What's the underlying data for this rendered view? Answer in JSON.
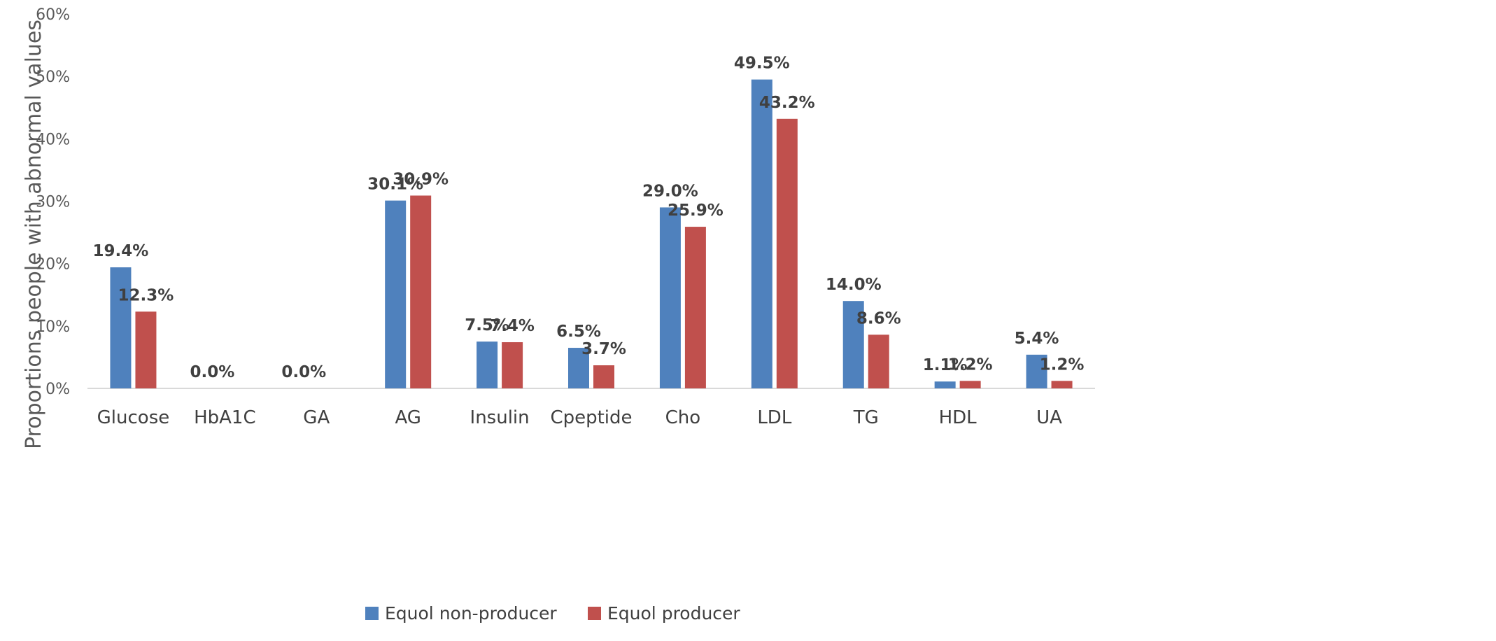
{
  "chart_data": {
    "type": "bar",
    "categories": [
      "Glucose",
      "HbA1C",
      "GA",
      "AG",
      "Insulin",
      "Cpeptide",
      "Cho",
      "LDL",
      "TG",
      "HDL",
      "UA"
    ],
    "series": [
      {
        "name": "Equol non-producer",
        "color": "#4f81bd",
        "values": [
          19.4,
          0.0,
          0.0,
          30.1,
          7.5,
          6.5,
          29.0,
          49.5,
          14.0,
          1.1,
          5.4
        ],
        "labels": [
          "19.4%",
          "0.0%",
          "0.0%",
          "30.1%",
          "7.5%",
          "6.5%",
          "29.0%",
          "49.5%",
          "14.0%",
          "1.1%",
          "5.4%"
        ]
      },
      {
        "name": "Equol producer",
        "color": "#c0504d",
        "values": [
          12.3,
          null,
          null,
          30.9,
          7.4,
          3.7,
          25.9,
          43.2,
          8.6,
          1.2,
          1.2
        ],
        "labels": [
          "12.3%",
          "",
          "",
          "30.9%",
          "7.4%",
          "3.7%",
          "25.9%",
          "43.2%",
          "8.6%",
          "1.2%",
          "1.2%"
        ]
      }
    ],
    "ylabel": "Proportions people with abnormal values",
    "xlabel": "",
    "ylim": [
      0,
      60
    ],
    "yticks": [
      0,
      10,
      20,
      30,
      40,
      50,
      60
    ],
    "ytick_labels": [
      "0%",
      "10%",
      "20%",
      "30%",
      "40%",
      "50%",
      "60%"
    ],
    "grid": false,
    "legend": "bottom"
  }
}
